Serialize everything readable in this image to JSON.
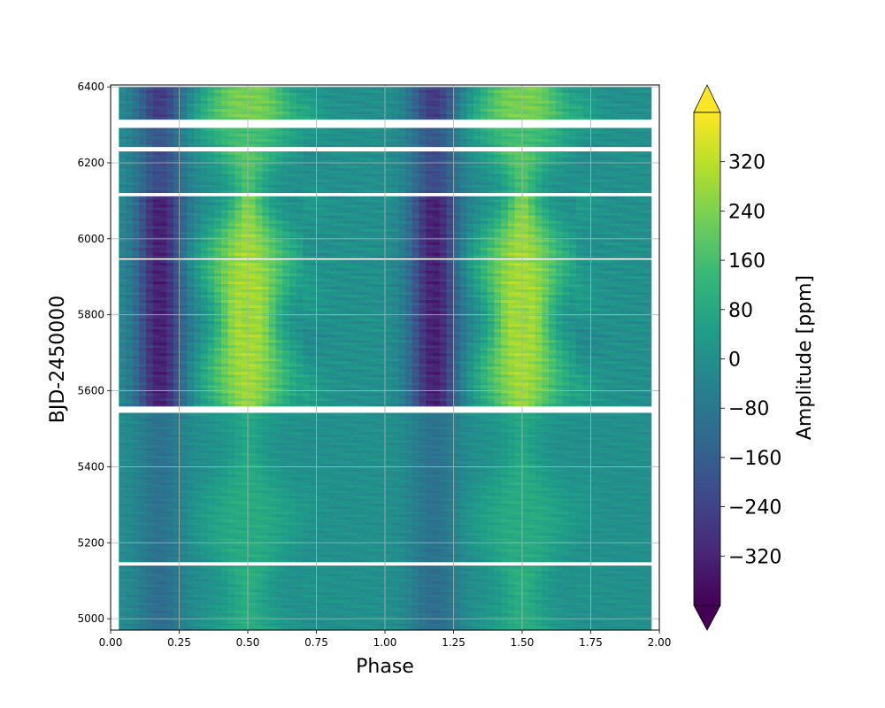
{
  "chart_data": {
    "type": "heatmap",
    "title": "",
    "xlabel": "Phase",
    "ylabel": "BJD-2450000",
    "xlim": [
      0.0,
      2.0
    ],
    "ylim": [
      4970,
      6405
    ],
    "xticks": [
      0.0,
      0.25,
      0.5,
      0.75,
      1.0,
      1.25,
      1.5,
      1.75,
      2.0
    ],
    "xtick_labels": [
      "0.00",
      "0.25",
      "0.50",
      "0.75",
      "1.00",
      "1.25",
      "1.50",
      "1.75",
      "2.00"
    ],
    "yticks": [
      5000,
      5200,
      5400,
      5600,
      5800,
      6000,
      6200,
      6400
    ],
    "ytick_labels": [
      "5000",
      "5200",
      "5400",
      "5600",
      "5800",
      "6000",
      "6200",
      "6400"
    ],
    "grid": true,
    "data_x_range": [
      0.03,
      1.97
    ],
    "segments": [
      {
        "start": 4968,
        "end": 5140,
        "amplitude": 0.35
      },
      {
        "start": 5150,
        "end": 5542,
        "amplitude": 0.3
      },
      {
        "start": 5560,
        "end": 5945,
        "amplitude": 1.0
      },
      {
        "start": 5950,
        "end": 6112,
        "amplitude": 1.0
      },
      {
        "start": 6122,
        "end": 6230,
        "amplitude": 0.65
      },
      {
        "start": 6243,
        "end": 6292,
        "amplitude": 0.55
      },
      {
        "start": 6315,
        "end": 6400,
        "amplitude": 0.8
      }
    ],
    "profile": {
      "min_phase": 0.18,
      "max_phase": 0.5,
      "min_value": -330,
      "max_value": 290
    },
    "colorbar": {
      "label": "Amplitude [ppm]",
      "vmin": -400,
      "vmax": 400,
      "ticks": [
        -320,
        -240,
        -160,
        -80,
        0,
        80,
        160,
        240,
        320
      ],
      "tick_labels": [
        "−320",
        "−240",
        "−160",
        "−80",
        "0",
        "80",
        "160",
        "240",
        "320"
      ],
      "extend": "both",
      "colormap": "viridis",
      "colors": [
        "#440154",
        "#482878",
        "#3e4a89",
        "#31688e",
        "#26828e",
        "#1f9e89",
        "#35b779",
        "#6ece58",
        "#b5de2b",
        "#fde725"
      ]
    }
  }
}
